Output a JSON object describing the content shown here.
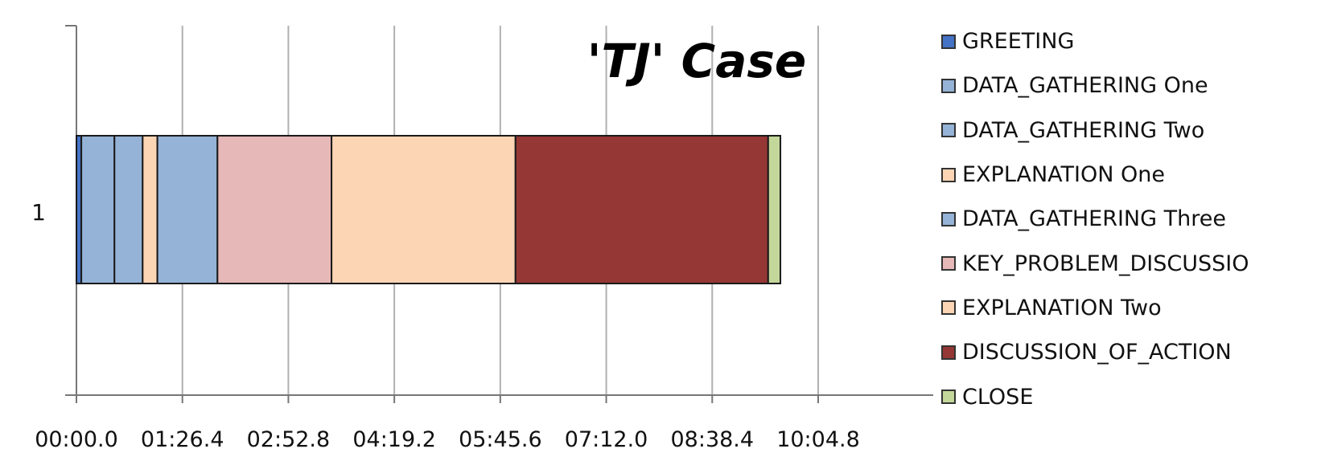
{
  "chart_data": {
    "type": "bar",
    "orientation": "horizontal",
    "stacked": true,
    "title": "'TJ' Case",
    "categories": [
      "1"
    ],
    "x_ticks": [
      "00:00.0",
      "01:26.4",
      "02:52.8",
      "04:19.2",
      "05:45.6",
      "07:12.0",
      "08:38.4",
      "10:04.8"
    ],
    "x_unit": "mm:ss.s",
    "xlim_seconds": [
      0,
      604.8
    ],
    "grid": "vertical",
    "legend_position": "right",
    "series": [
      {
        "name": "GREETING",
        "values": [
          4
        ],
        "color": "#4472c4"
      },
      {
        "name": "DATA_GATHERING One",
        "values": [
          27
        ],
        "color": "#95b3d7"
      },
      {
        "name": "DATA_GATHERING Two",
        "values": [
          23
        ],
        "color": "#95b3d7"
      },
      {
        "name": "EXPLANATION One",
        "values": [
          12
        ],
        "color": "#fcd5b4"
      },
      {
        "name": "DATA_GATHERING Three",
        "values": [
          49
        ],
        "color": "#95b3d7"
      },
      {
        "name": "KEY_PROBLEM_DISCUSSIO",
        "values": [
          93
        ],
        "color": "#e6b8b7"
      },
      {
        "name": "EXPLANATION Two",
        "values": [
          150
        ],
        "color": "#fcd5b4"
      },
      {
        "name": "DISCUSSION_OF_ACTION",
        "values": [
          206
        ],
        "color": "#953735"
      },
      {
        "name": "CLOSE",
        "values": [
          10
        ],
        "color": "#c4d79b"
      }
    ]
  }
}
